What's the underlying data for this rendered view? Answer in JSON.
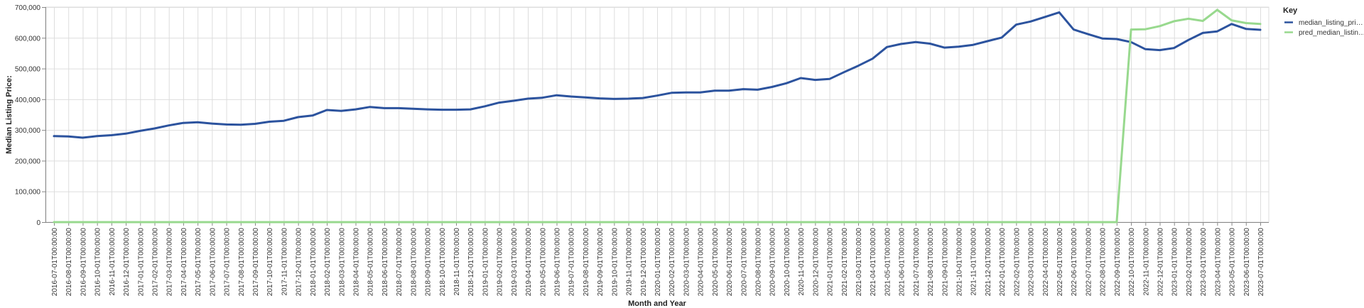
{
  "chart_data": {
    "type": "line",
    "xlabel": "Month and Year",
    "ylabel": "Median Listing Price:",
    "ylim": [
      0,
      700000
    ],
    "y_ticks": [
      "0",
      "100,000",
      "200,000",
      "300,000",
      "400,000",
      "500,000",
      "600,000",
      "700,000"
    ],
    "y_tick_values": [
      0,
      100000,
      200000,
      300000,
      400000,
      500000,
      600000,
      700000
    ],
    "grid": true,
    "legend_position": "top-right",
    "legend_title": "Key",
    "x": [
      "2016-07-01T00:00:00",
      "2016-08-01T00:00:00",
      "2016-09-01T00:00:00",
      "2016-10-01T00:00:00",
      "2016-11-01T00:00:00",
      "2016-12-01T00:00:00",
      "2017-01-01T00:00:00",
      "2017-02-01T00:00:00",
      "2017-03-01T00:00:00",
      "2017-04-01T00:00:00",
      "2017-05-01T00:00:00",
      "2017-06-01T00:00:00",
      "2017-07-01T00:00:00",
      "2017-08-01T00:00:00",
      "2017-09-01T00:00:00",
      "2017-10-01T00:00:00",
      "2017-11-01T00:00:00",
      "2017-12-01T00:00:00",
      "2018-01-01T00:00:00",
      "2018-02-01T00:00:00",
      "2018-03-01T00:00:00",
      "2018-04-01T00:00:00",
      "2018-05-01T00:00:00",
      "2018-06-01T00:00:00",
      "2018-07-01T00:00:00",
      "2018-08-01T00:00:00",
      "2018-09-01T00:00:00",
      "2018-10-01T00:00:00",
      "2018-11-01T00:00:00",
      "2018-12-01T00:00:00",
      "2019-01-01T00:00:00",
      "2019-02-01T00:00:00",
      "2019-03-01T00:00:00",
      "2019-04-01T00:00:00",
      "2019-05-01T00:00:00",
      "2019-06-01T00:00:00",
      "2019-07-01T00:00:00",
      "2019-08-01T00:00:00",
      "2019-09-01T00:00:00",
      "2019-10-01T00:00:00",
      "2019-11-01T00:00:00",
      "2019-12-01T00:00:00",
      "2020-01-01T00:00:00",
      "2020-02-01T00:00:00",
      "2020-03-01T00:00:00",
      "2020-04-01T00:00:00",
      "2020-05-01T00:00:00",
      "2020-06-01T00:00:00",
      "2020-07-01T00:00:00",
      "2020-08-01T00:00:00",
      "2020-09-01T00:00:00",
      "2020-10-01T00:00:00",
      "2020-11-01T00:00:00",
      "2020-12-01T00:00:00",
      "2021-01-01T00:00:00",
      "2021-02-01T00:00:00",
      "2021-03-01T00:00:00",
      "2021-04-01T00:00:00",
      "2021-05-01T00:00:00",
      "2021-06-01T00:00:00",
      "2021-07-01T00:00:00",
      "2021-08-01T00:00:00",
      "2021-09-01T00:00:00",
      "2021-10-01T00:00:00",
      "2021-11-01T00:00:00",
      "2021-12-01T00:00:00",
      "2022-01-01T00:00:00",
      "2022-02-01T00:00:00",
      "2022-03-01T00:00:00",
      "2022-04-01T00:00:00",
      "2022-05-01T00:00:00",
      "2022-06-01T00:00:00",
      "2022-07-01T00:00:00",
      "2022-08-01T00:00:00",
      "2022-09-01T00:00:00",
      "2022-10-01T00:00:00",
      "2022-11-01T00:00:00",
      "2022-12-01T00:00:00",
      "2023-01-01T00:00:00",
      "2023-02-01T00:00:00",
      "2023-03-01T00:00:00",
      "2023-04-01T00:00:00",
      "2023-05-01T00:00:00",
      "2023-06-01T00:00:00",
      "2023-07-01T00:00:00"
    ],
    "series": [
      {
        "name": "median_listing_pri…",
        "color": "#2c539e",
        "values": [
          280000,
          279000,
          275000,
          280000,
          283000,
          288000,
          297000,
          305000,
          315000,
          323000,
          325000,
          321000,
          318000,
          317000,
          320000,
          327000,
          330000,
          342000,
          347000,
          365000,
          362000,
          367000,
          375000,
          371000,
          371000,
          369000,
          367000,
          366000,
          366000,
          367000,
          377000,
          389000,
          395000,
          402000,
          405000,
          413000,
          409000,
          406000,
          403000,
          401000,
          402000,
          404000,
          412000,
          421000,
          422000,
          422000,
          428000,
          428000,
          433000,
          431000,
          440000,
          452000,
          469000,
          463000,
          466000,
          488000,
          509000,
          532000,
          570000,
          580000,
          586000,
          581000,
          568000,
          571000,
          577000,
          589000,
          601000,
          643000,
          653000,
          668000,
          683000,
          627000,
          612000,
          598000,
          596000,
          586000,
          563000,
          560000,
          567000,
          593000,
          616000,
          621000,
          645000,
          629000,
          626000
        ]
      },
      {
        "name": "pred_median_listin…",
        "color": "#98d98e",
        "values": [
          0,
          0,
          0,
          0,
          0,
          0,
          0,
          0,
          0,
          0,
          0,
          0,
          0,
          0,
          0,
          0,
          0,
          0,
          0,
          0,
          0,
          0,
          0,
          0,
          0,
          0,
          0,
          0,
          0,
          0,
          0,
          0,
          0,
          0,
          0,
          0,
          0,
          0,
          0,
          0,
          0,
          0,
          0,
          0,
          0,
          0,
          0,
          0,
          0,
          0,
          0,
          0,
          0,
          0,
          0,
          0,
          0,
          0,
          0,
          0,
          0,
          0,
          0,
          0,
          0,
          0,
          0,
          0,
          0,
          0,
          0,
          0,
          0,
          0,
          0,
          627000,
          628000,
          638000,
          654000,
          662000,
          655000,
          691000,
          657000,
          648000,
          645000
        ]
      }
    ]
  }
}
